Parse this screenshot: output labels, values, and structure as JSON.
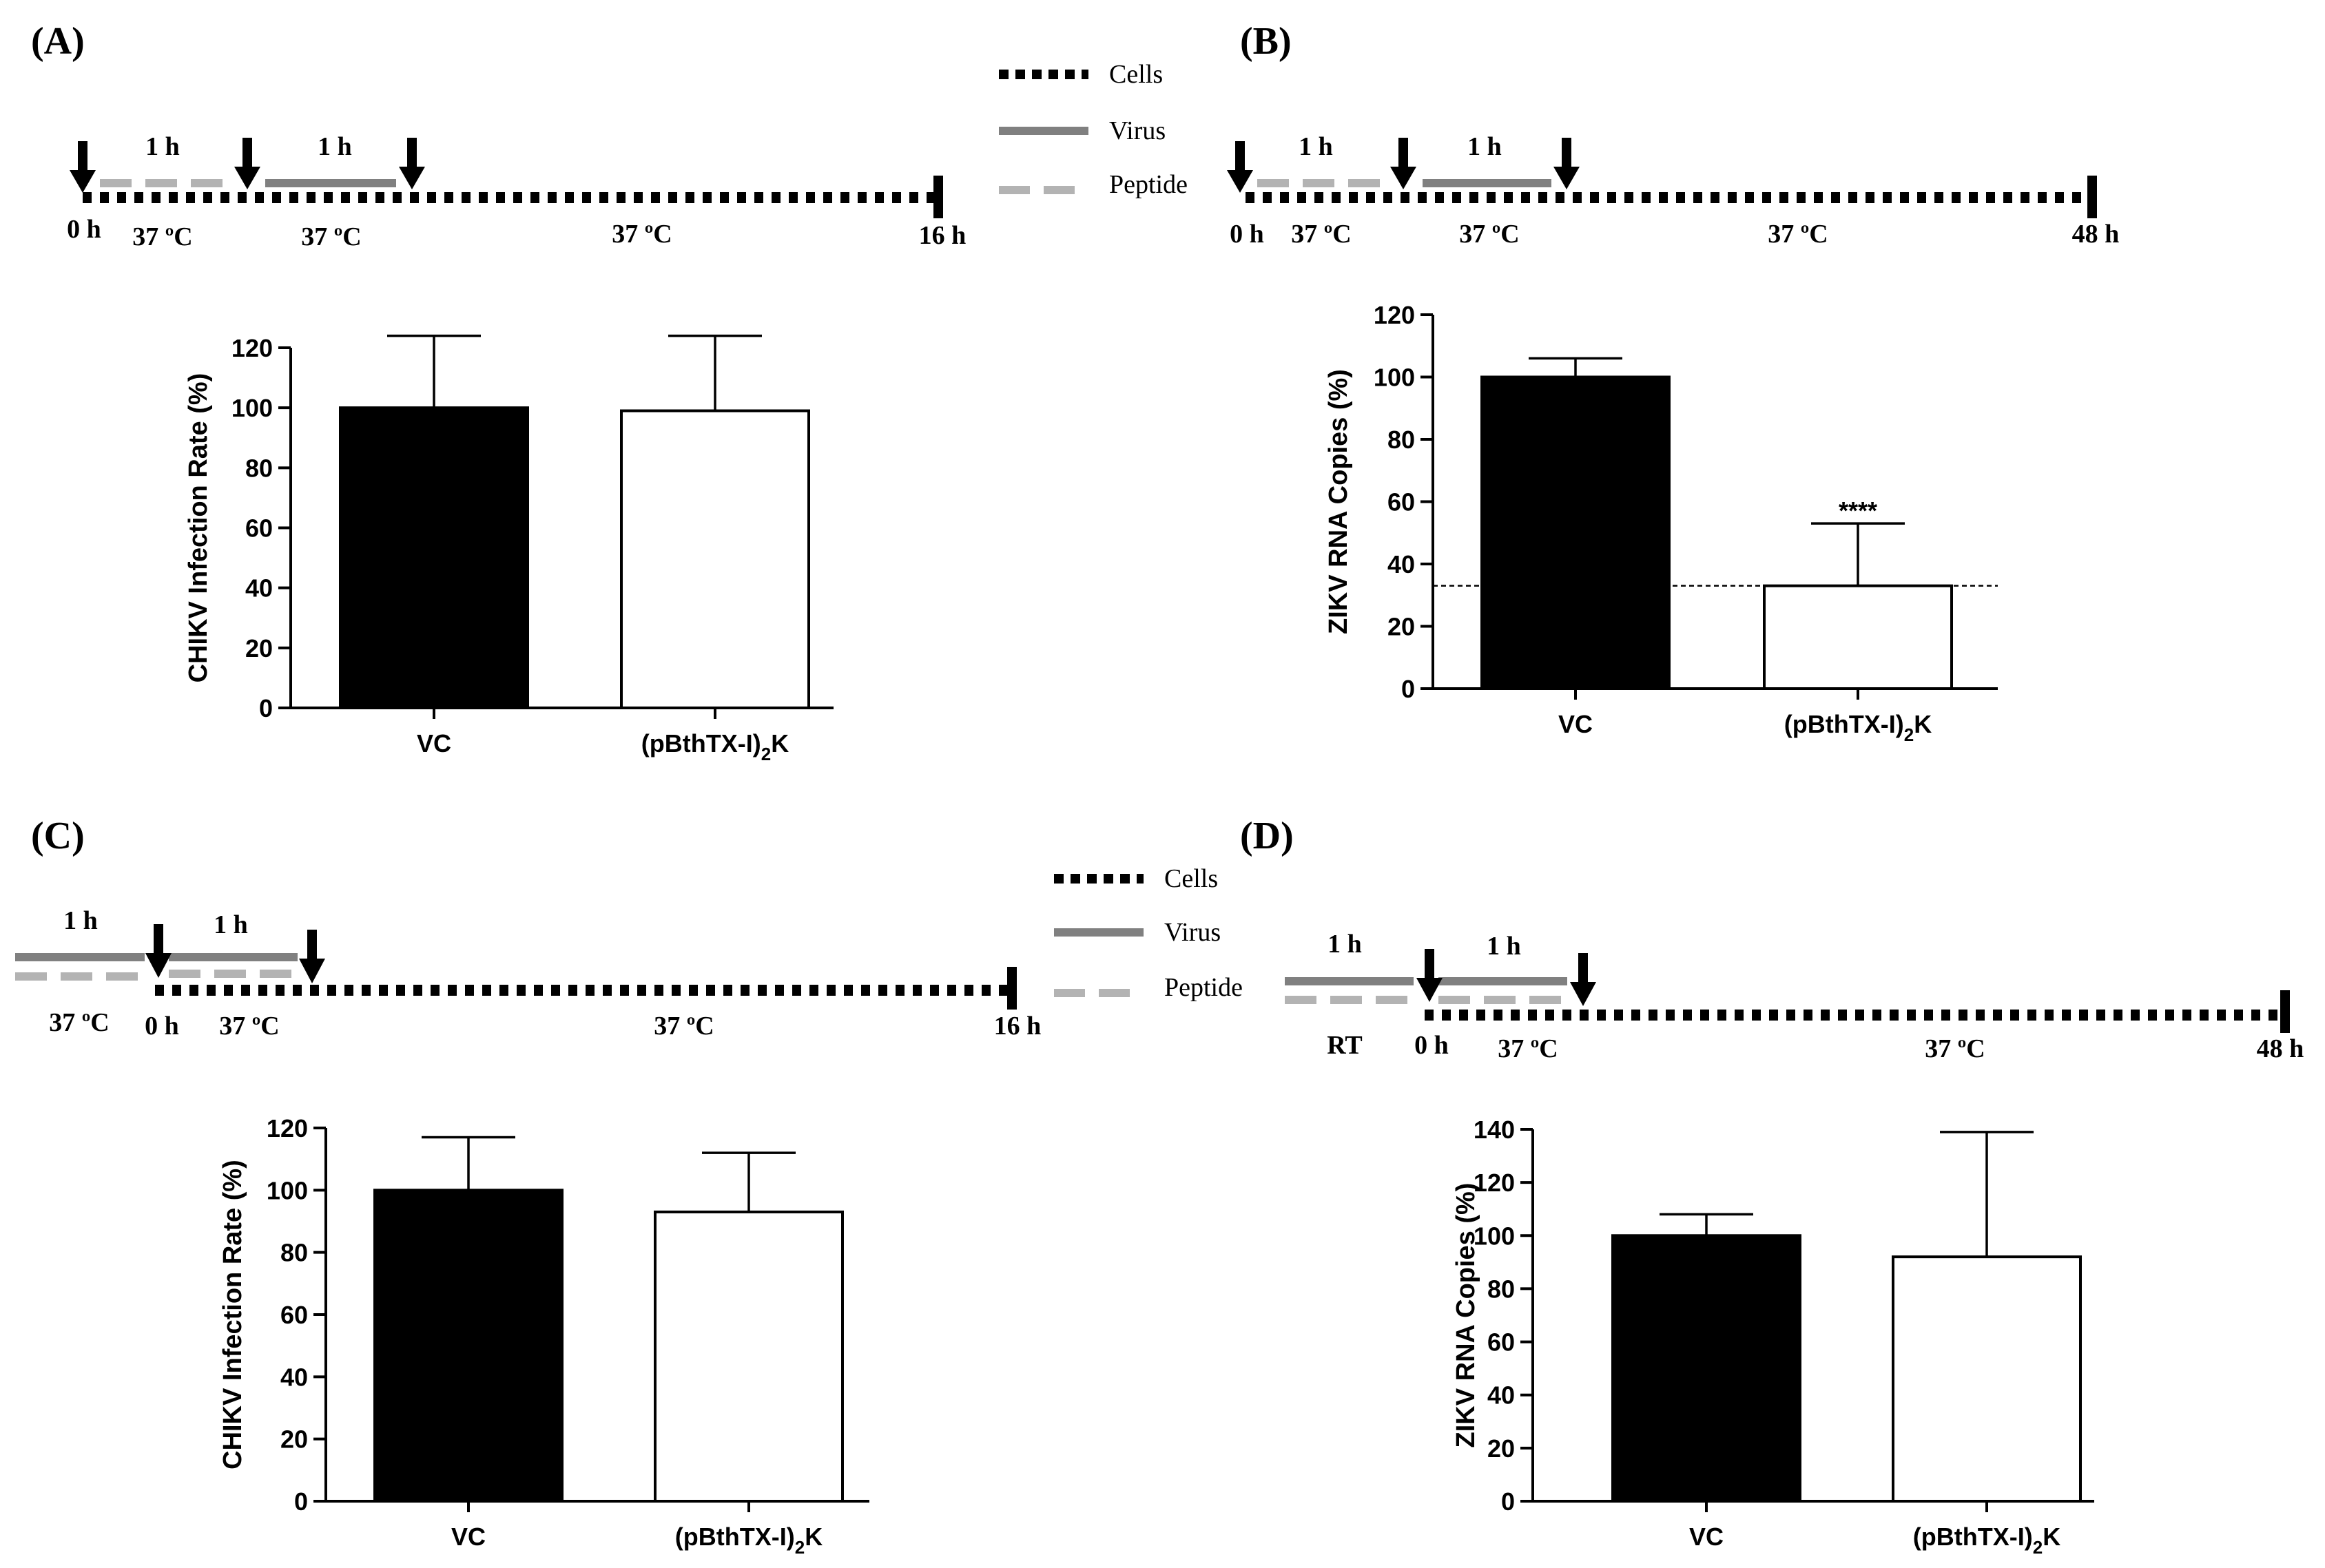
{
  "legend": {
    "cells": "Cells",
    "virus": "Virus",
    "peptide": "Peptide"
  },
  "panels": [
    {
      "label": "(A)",
      "timeline": {
        "duration_1": "1 h",
        "duration_2": "1 h",
        "start": "0 h",
        "temp_1": "37 ºC",
        "temp_2": "37 ºC",
        "temp_3": "37 ºC",
        "end": "16 h"
      }
    },
    {
      "label": "(B)",
      "timeline": {
        "duration_1": "1 h",
        "duration_2": "1 h",
        "start": "0 h",
        "temp_1": "37 ºC",
        "temp_2": "37 ºC",
        "temp_3": "37 ºC",
        "end": "48 h"
      }
    },
    {
      "label": "(C)",
      "timeline": {
        "duration_1": "1 h",
        "duration_2": "1 h",
        "pre_temp": "37 ºC",
        "start": "0 h",
        "temp_2": "37 ºC",
        "temp_3": "37 ºC",
        "end": "16 h"
      }
    },
    {
      "label": "(D)",
      "timeline": {
        "duration_1": "1 h",
        "duration_2": "1 h",
        "pre_temp": "RT",
        "start": "0 h",
        "temp_2": "37 ºC",
        "temp_3": "37 ºC",
        "end": "48 h"
      }
    }
  ],
  "chart_data": [
    {
      "panel": "A",
      "type": "bar",
      "categories": [
        "VC",
        "(pBthTX-I)2K"
      ],
      "category_display": [
        {
          "main": "VC",
          "sub": "",
          "tail": ""
        },
        {
          "main": "(pBthTX-I)",
          "sub": "2",
          "tail": "K"
        }
      ],
      "values": [
        100,
        99
      ],
      "errors": [
        24,
        25
      ],
      "bar_colors": [
        "#000000",
        "#ffffff"
      ],
      "ylabel": "CHIKV Infection Rate (%)",
      "ylim": [
        0,
        120
      ],
      "yticks": [
        0,
        20,
        40,
        60,
        80,
        100,
        120
      ],
      "significance": [
        "",
        ""
      ]
    },
    {
      "panel": "B",
      "type": "bar",
      "categories": [
        "VC",
        "(pBthTX-I)2K"
      ],
      "category_display": [
        {
          "main": "VC",
          "sub": "",
          "tail": ""
        },
        {
          "main": "(pBthTX-I)",
          "sub": "2",
          "tail": "K"
        }
      ],
      "values": [
        100,
        33
      ],
      "errors": [
        6,
        20
      ],
      "bar_colors": [
        "#000000",
        "#ffffff"
      ],
      "ylabel": "ZIKV RNA Copies (%)",
      "ylim": [
        0,
        120
      ],
      "yticks": [
        0,
        20,
        40,
        60,
        80,
        100,
        120
      ],
      "significance": [
        "",
        "****"
      ],
      "reference_line": 33
    },
    {
      "panel": "C",
      "type": "bar",
      "categories": [
        "VC",
        "(pBthTX-I)2K"
      ],
      "category_display": [
        {
          "main": "VC",
          "sub": "",
          "tail": ""
        },
        {
          "main": "(pBthTX-I)",
          "sub": "2",
          "tail": "K"
        }
      ],
      "values": [
        100,
        93
      ],
      "errors": [
        17,
        19
      ],
      "bar_colors": [
        "#000000",
        "#ffffff"
      ],
      "ylabel": "CHIKV Infection Rate (%)",
      "ylim": [
        0,
        120
      ],
      "yticks": [
        0,
        20,
        40,
        60,
        80,
        100,
        120
      ],
      "significance": [
        "",
        ""
      ]
    },
    {
      "panel": "D",
      "type": "bar",
      "categories": [
        "VC",
        "(pBthTX-I)2K"
      ],
      "category_display": [
        {
          "main": "VC",
          "sub": "",
          "tail": ""
        },
        {
          "main": "(pBthTX-I)",
          "sub": "2",
          "tail": "K"
        }
      ],
      "values": [
        100,
        92
      ],
      "errors": [
        8,
        47
      ],
      "bar_colors": [
        "#000000",
        "#ffffff"
      ],
      "ylabel": "ZIKV RNA Copies (%)",
      "ylim": [
        0,
        140
      ],
      "yticks": [
        0,
        20,
        40,
        60,
        80,
        100,
        120,
        140
      ],
      "significance": [
        "",
        ""
      ]
    }
  ]
}
